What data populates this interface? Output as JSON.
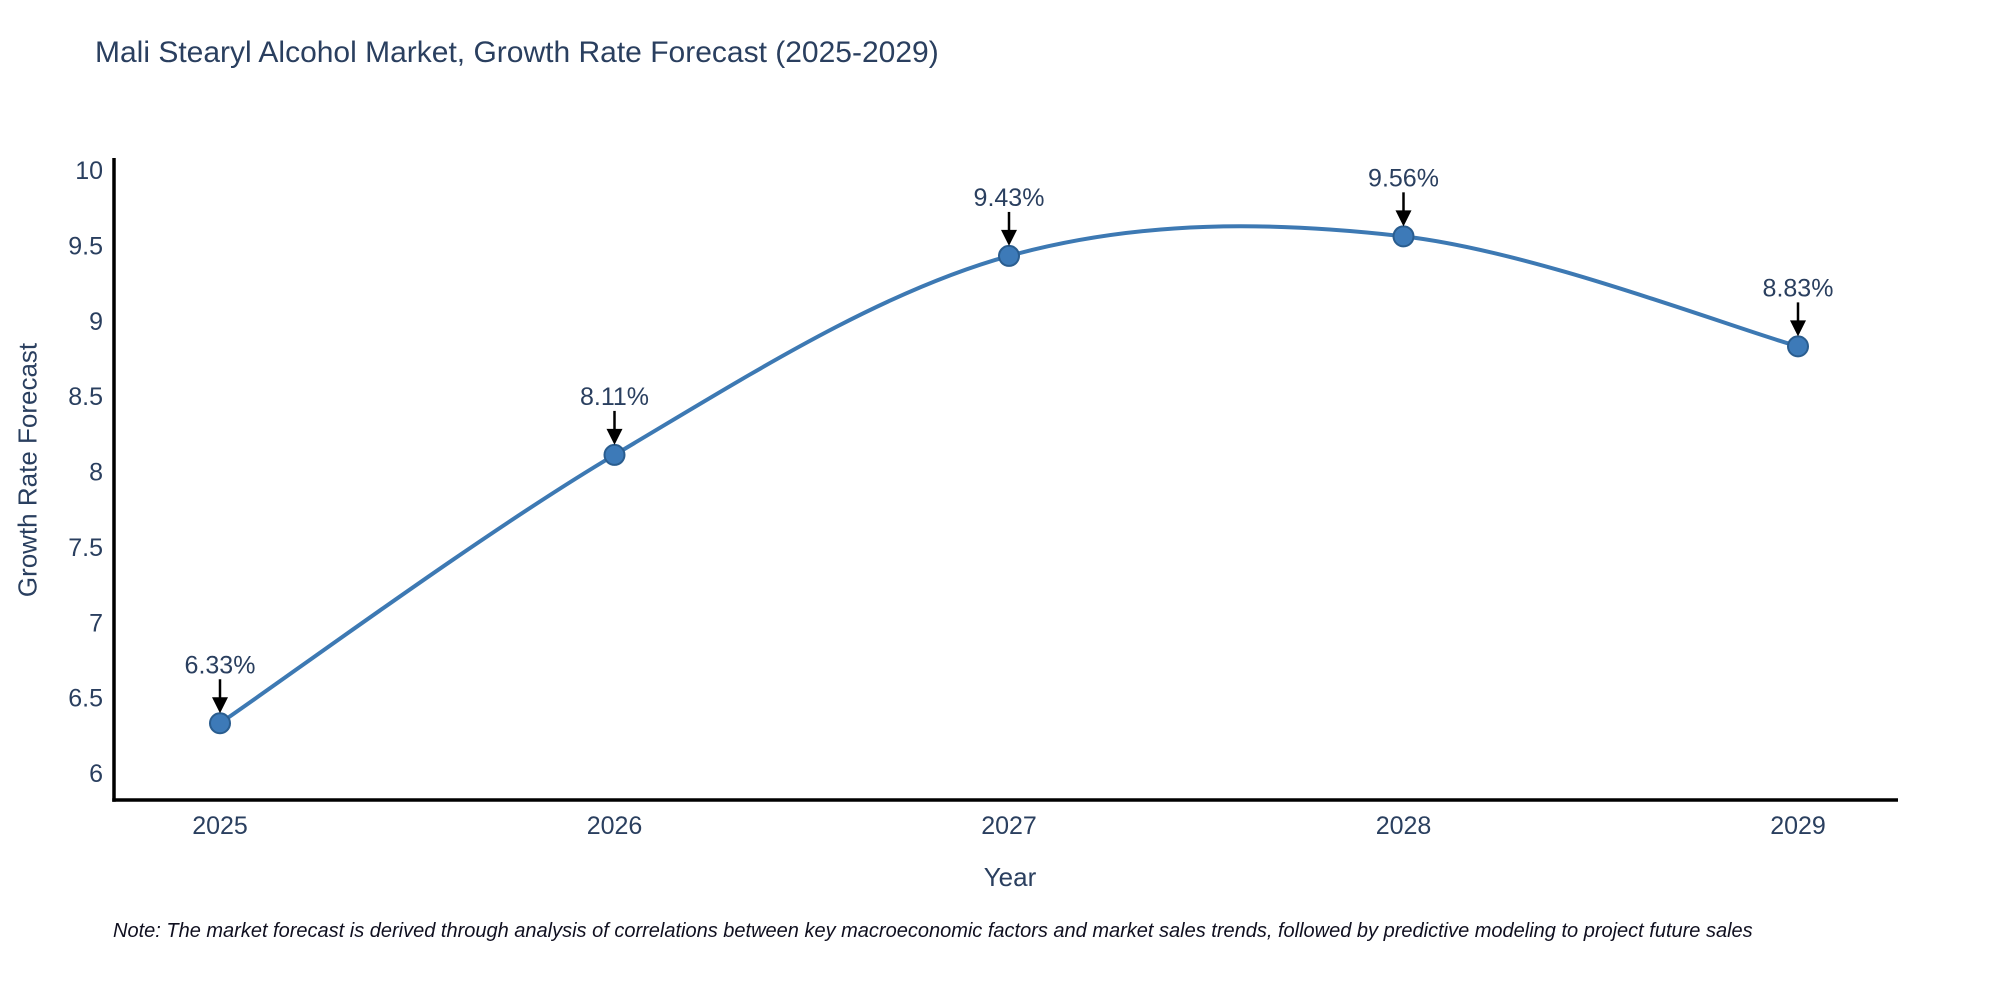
{
  "note": "Note: The market forecast is derived through analysis of correlations between key macroeconomic factors and market sales trends, followed by predictive modeling to project future sales",
  "chart_data": {
    "type": "line",
    "title": "Mali Stearyl Alcohol Market, Growth Rate Forecast (2025-2029)",
    "xlabel": "Year",
    "ylabel": "Growth Rate Forecast",
    "x": [
      2025,
      2026,
      2027,
      2028,
      2029
    ],
    "values": [
      6.33,
      8.11,
      9.43,
      9.56,
      8.83
    ],
    "point_labels": [
      "6.33%",
      "8.11%",
      "9.43%",
      "9.56%",
      "8.83%"
    ],
    "x_tick_labels": [
      "2025",
      "2026",
      "2027",
      "2028",
      "2029"
    ],
    "y_ticks": [
      6,
      6.5,
      7,
      7.5,
      8,
      8.5,
      9,
      9.5,
      10
    ],
    "y_tick_labels": [
      "6",
      "6.5",
      "7",
      "7.5",
      "8",
      "8.5",
      "9",
      "9.5",
      "10"
    ],
    "ylim": [
      5.82,
      10.08
    ],
    "xlim": [
      2024.73,
      2029.25
    ],
    "grid": false,
    "legend_position": "none",
    "line_shape": "spline",
    "marker": "circle",
    "annotation_arrows": true,
    "colors": {
      "line": "#3d79b3",
      "marker_fill": "#3d7ab8",
      "marker_edge": "#2a5d8f",
      "axis_spine": "#000000",
      "tick_text": "#2a3f5f",
      "title_text": "#2a3f5f",
      "annotation_text": "#2a3f5f",
      "arrow": "#000000",
      "background": "#ffffff"
    }
  }
}
